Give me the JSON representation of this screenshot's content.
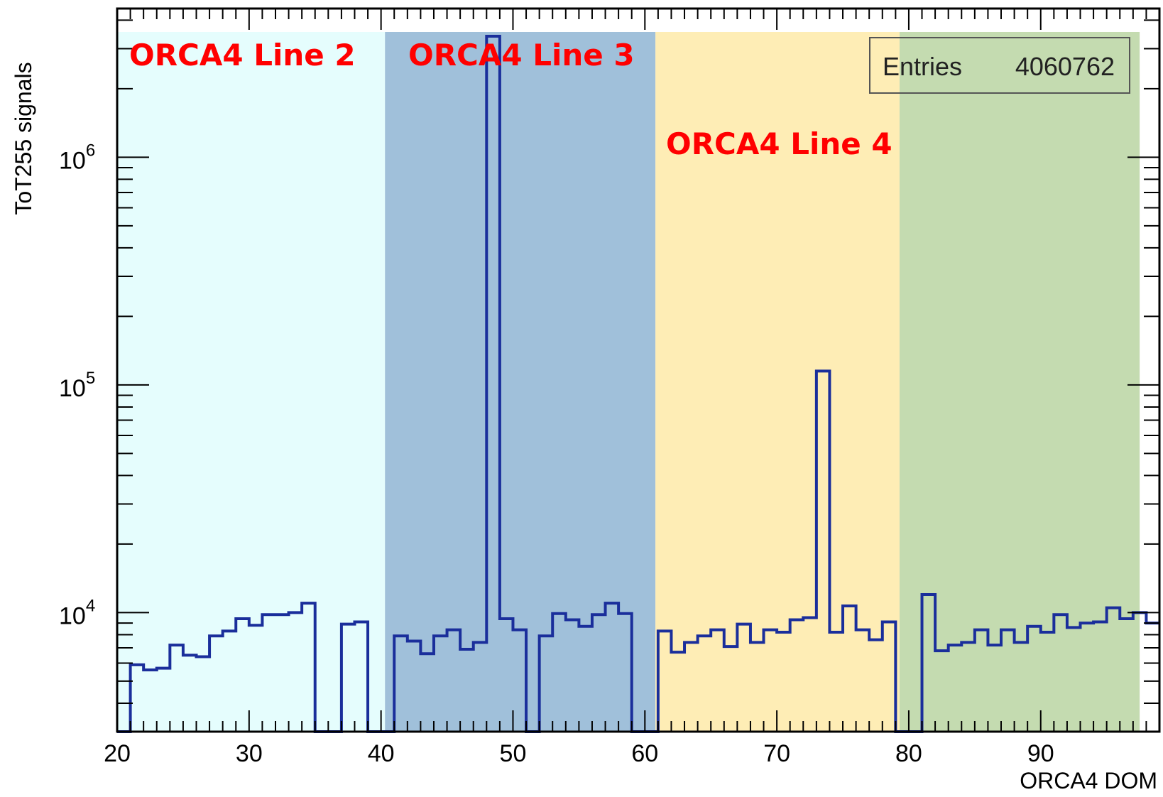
{
  "chart_data": {
    "type": "histogram",
    "xlabel": "ORCA4 DOM",
    "ylabel": "ToT255 signals",
    "xlim": [
      20,
      99
    ],
    "ylim": [
      3000,
      4500000
    ],
    "yscale": "log",
    "grid": false,
    "x_ticks": [
      20,
      30,
      40,
      50,
      60,
      70,
      80,
      90
    ],
    "x_tick_labels": [
      "20",
      "30",
      "40",
      "50",
      "60",
      "70",
      "80",
      "90"
    ],
    "y_ticks": [
      10000,
      100000,
      1000000
    ],
    "y_tick_bases": [
      "10",
      "10",
      "10"
    ],
    "y_tick_exponents": [
      "4",
      "5",
      "6"
    ],
    "stats_box": {
      "label": "Entries",
      "value": "4060762"
    },
    "regions": [
      {
        "label": "ORCA4 Line 2",
        "x0": 20,
        "x1": 40.3,
        "color": "#e5fdfd"
      },
      {
        "label": "ORCA4 Line 3",
        "x0": 40.3,
        "x1": 60.8,
        "color": "#a0c0da"
      },
      {
        "label": "ORCA4 Line 4",
        "x0": 60.8,
        "x1": 79.3,
        "color": "#feedb5"
      },
      {
        "label": "",
        "x0": 79.3,
        "x1": 97.5,
        "color": "#c4dbb0"
      }
    ],
    "line_color": "#1a2e9b",
    "bin_edges_start": 20,
    "bin_width": 1,
    "values": [
      2900,
      5900,
      5600,
      5700,
      7200,
      6500,
      6400,
      7900,
      8300,
      9400,
      8800,
      9800,
      9800,
      10000,
      11000,
      2900,
      2900,
      8900,
      9100,
      2900,
      2900,
      7900,
      7500,
      6600,
      7900,
      8400,
      6900,
      7400,
      3400000,
      9400,
      8400,
      2900,
      7900,
      9900,
      9300,
      8700,
      9800,
      11000,
      9900,
      2900,
      2900,
      8300,
      6700,
      7400,
      7900,
      8400,
      7100,
      8900,
      7400,
      8400,
      8200,
      9300,
      9500,
      115000,
      8200,
      10700,
      8400,
      7600,
      9100,
      2900,
      2900,
      12000,
      6800,
      7200,
      7400,
      8400,
      7200,
      8400,
      7400,
      8700,
      8200,
      9800,
      8600,
      9000,
      9100,
      10500,
      9400,
      10000,
      9000
    ]
  }
}
